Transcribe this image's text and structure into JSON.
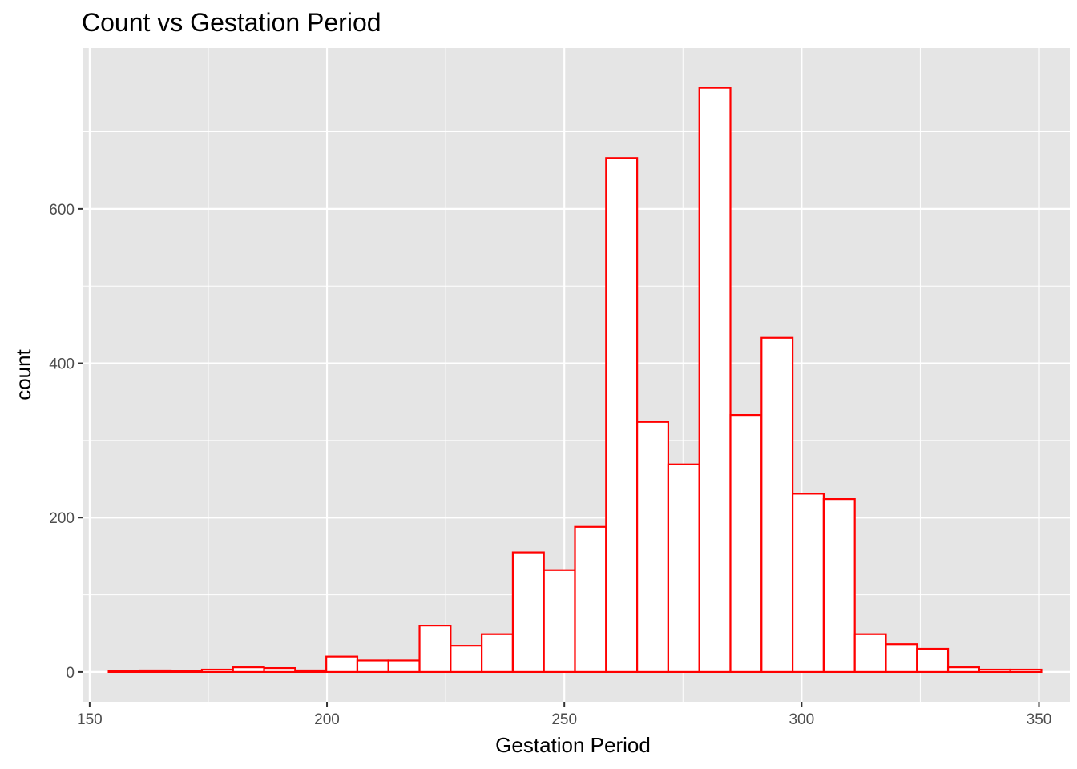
{
  "chart_data": {
    "type": "bar",
    "title": "Count vs Gestation Period",
    "xlabel": "Gestation Period",
    "ylabel": "count",
    "xlim": [
      148.5,
      356.5
    ],
    "ylim": [
      -38.5,
      808.5
    ],
    "x_ticks": [
      150,
      200,
      250,
      300,
      350
    ],
    "x_tick_labels": [
      "150",
      "200",
      "250",
      "300",
      "350"
    ],
    "y_ticks": [
      0,
      200,
      400,
      600
    ],
    "y_tick_labels": [
      "0",
      "200",
      "400",
      "600"
    ],
    "grid": true,
    "bin_width": 6.55,
    "bin_starts": [
      154.0,
      160.55,
      167.1,
      173.65,
      180.2,
      186.75,
      193.3,
      199.85,
      206.4,
      212.95,
      219.5,
      226.05,
      232.6,
      239.15,
      245.7,
      252.25,
      258.8,
      265.35,
      271.9,
      278.45,
      285.0,
      291.55,
      298.1,
      304.65,
      311.2,
      317.75,
      324.3,
      330.85,
      337.4,
      343.95
    ],
    "values": [
      1,
      2,
      1,
      3,
      6,
      5,
      2,
      20,
      15,
      15,
      60,
      34,
      49,
      155,
      132,
      188,
      666,
      324,
      269,
      757,
      333,
      433,
      231,
      224,
      49,
      36,
      30,
      6,
      3,
      3
    ],
    "colors": {
      "panel_background": "#e5e5e5",
      "grid_line": "#ffffff",
      "bar_fill": "#ffffff",
      "bar_outline": "#ff0000",
      "tick_mark": "#333333"
    }
  }
}
